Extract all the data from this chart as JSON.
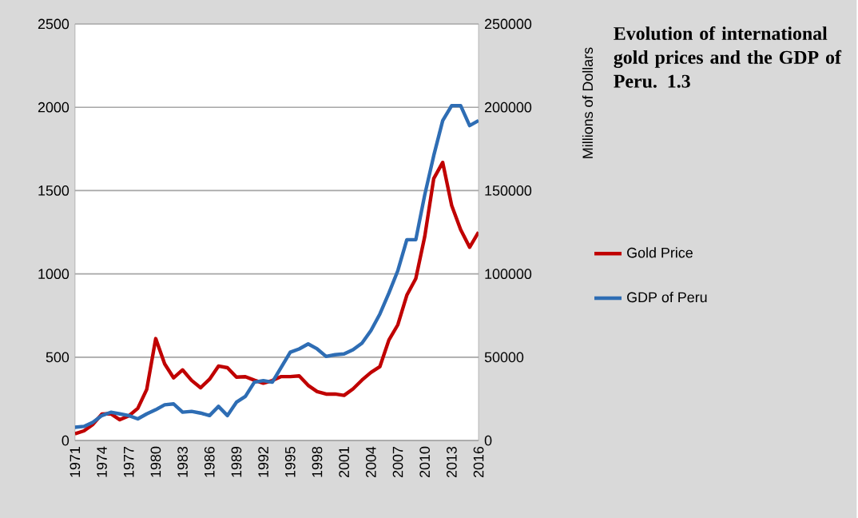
{
  "chart_data": {
    "type": "line",
    "title": "Evolution of international gold prices and the GDP of Peru. 1.3",
    "y2label": "Millions of Dollars",
    "x": [
      1971,
      1972,
      1973,
      1974,
      1975,
      1976,
      1977,
      1978,
      1979,
      1980,
      1981,
      1982,
      1983,
      1984,
      1985,
      1986,
      1987,
      1988,
      1989,
      1990,
      1991,
      1992,
      1993,
      1994,
      1995,
      1996,
      1997,
      1998,
      1999,
      2000,
      2001,
      2002,
      2003,
      2004,
      2005,
      2006,
      2007,
      2008,
      2009,
      2010,
      2011,
      2012,
      2013,
      2014,
      2015,
      2016
    ],
    "xlim": [
      1971,
      2016
    ],
    "xticks": [
      1971,
      1974,
      1977,
      1980,
      1983,
      1986,
      1989,
      1992,
      1995,
      1998,
      2001,
      2004,
      2007,
      2010,
      2013,
      2016
    ],
    "ylim": [
      0,
      2500
    ],
    "yticks": [
      0,
      500,
      1000,
      1500,
      2000,
      2500
    ],
    "y2lim": [
      0,
      250000
    ],
    "y2ticks": [
      0,
      50000,
      100000,
      150000,
      200000,
      250000
    ],
    "grid": "y",
    "legend": "right",
    "series": [
      {
        "name": "Gold Price",
        "color": "#c00000",
        "values": [
          41,
          58,
          97,
          159,
          161,
          125,
          148,
          193,
          307,
          612,
          460,
          376,
          424,
          361,
          317,
          368,
          447,
          437,
          381,
          383,
          362,
          344,
          360,
          384,
          384,
          388,
          331,
          294,
          279,
          279,
          271,
          310,
          363,
          409,
          444,
          603,
          695,
          872,
          972,
          1225,
          1572,
          1669,
          1411,
          1266,
          1160,
          1251
        ]
      },
      {
        "name": "GDP of Peru",
        "color": "#2e6db4",
        "axis": "y2",
        "values": [
          8000,
          8500,
          11000,
          15000,
          17000,
          16000,
          15000,
          13000,
          16000,
          18500,
          21500,
          22000,
          17000,
          17500,
          16500,
          15000,
          20500,
          15000,
          23000,
          26500,
          35000,
          36000,
          35000,
          44000,
          53000,
          55000,
          58000,
          55000,
          50500,
          51500,
          52000,
          54500,
          58500,
          66000,
          76000,
          88500,
          102000,
          120500,
          120500,
          147500,
          171000,
          192000,
          201000,
          201000,
          189000,
          192000
        ]
      }
    ]
  }
}
